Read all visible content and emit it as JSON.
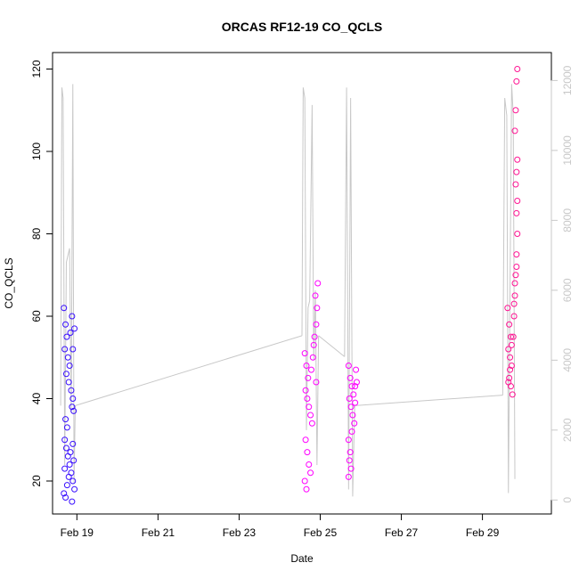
{
  "chart_data": {
    "type": "scatter",
    "title": "ORCAS RF12-19 CO_QCLS",
    "xlabel": "Date",
    "ylabel": "CO_QCLS",
    "x_ticks": [
      "Feb 19",
      "Feb 21",
      "Feb 23",
      "Feb 25",
      "Feb 27",
      "Feb 29"
    ],
    "x_tick_days": [
      19,
      21,
      23,
      25,
      27,
      29
    ],
    "xlim_days": [
      18.4,
      30.7
    ],
    "ylim": [
      12,
      124
    ],
    "y_ticks": [
      20,
      40,
      60,
      80,
      100,
      120
    ],
    "y2_ticks": [
      0,
      2000,
      4000,
      6000,
      8000,
      10000,
      12000
    ],
    "y2lim": [
      -400,
      12800
    ],
    "secondary_axis_color": "#c8c8c8",
    "altitude_line_color": "#c8c8c8",
    "series": [
      {
        "color": "#3a10ff",
        "x_range_days": [
          18.65,
          18.95
        ],
        "points": [
          [
            18.68,
            62
          ],
          [
            18.72,
            58
          ],
          [
            18.75,
            55
          ],
          [
            18.7,
            52
          ],
          [
            18.78,
            50
          ],
          [
            18.82,
            48
          ],
          [
            18.74,
            46
          ],
          [
            18.8,
            44
          ],
          [
            18.86,
            42
          ],
          [
            18.9,
            40
          ],
          [
            18.88,
            38
          ],
          [
            18.92,
            37
          ],
          [
            18.72,
            35
          ],
          [
            18.76,
            33
          ],
          [
            18.84,
            56
          ],
          [
            18.88,
            60
          ],
          [
            18.94,
            57
          ],
          [
            18.9,
            52
          ],
          [
            18.7,
            30
          ],
          [
            18.74,
            28
          ],
          [
            18.78,
            26
          ],
          [
            18.82,
            24
          ],
          [
            18.86,
            22
          ],
          [
            18.9,
            20
          ],
          [
            18.94,
            18
          ],
          [
            18.68,
            17
          ],
          [
            18.72,
            16
          ],
          [
            18.88,
            15
          ],
          [
            18.92,
            25
          ],
          [
            18.8,
            21
          ],
          [
            18.76,
            19
          ],
          [
            18.84,
            27
          ],
          [
            18.7,
            23
          ],
          [
            18.9,
            29
          ]
        ]
      },
      {
        "color": "#ff00ff",
        "x_range_days": [
          24.6,
          25.9
        ],
        "points": [
          [
            24.62,
            51
          ],
          [
            24.66,
            48
          ],
          [
            24.7,
            45
          ],
          [
            24.64,
            42
          ],
          [
            24.68,
            40
          ],
          [
            24.72,
            38
          ],
          [
            24.76,
            36
          ],
          [
            24.8,
            34
          ],
          [
            24.64,
            30
          ],
          [
            24.68,
            27
          ],
          [
            24.72,
            24
          ],
          [
            24.76,
            22
          ],
          [
            24.62,
            20
          ],
          [
            24.66,
            18
          ],
          [
            24.82,
            50
          ],
          [
            24.86,
            55
          ],
          [
            24.9,
            58
          ],
          [
            24.92,
            62
          ],
          [
            24.88,
            65
          ],
          [
            24.94,
            68
          ],
          [
            24.84,
            53
          ],
          [
            24.78,
            47
          ],
          [
            24.9,
            44
          ],
          [
            25.7,
            48
          ],
          [
            25.74,
            45
          ],
          [
            25.78,
            43
          ],
          [
            25.72,
            40
          ],
          [
            25.76,
            38
          ],
          [
            25.8,
            36
          ],
          [
            25.84,
            34
          ],
          [
            25.7,
            30
          ],
          [
            25.74,
            27
          ],
          [
            25.72,
            25
          ],
          [
            25.76,
            23
          ],
          [
            25.7,
            21
          ],
          [
            25.88,
            47
          ],
          [
            25.86,
            43
          ],
          [
            25.82,
            41
          ],
          [
            25.9,
            44
          ],
          [
            25.78,
            32
          ],
          [
            25.86,
            39
          ]
        ]
      },
      {
        "color": "#ff1493",
        "x_range_days": [
          29.6,
          29.9
        ],
        "points": [
          [
            29.62,
            62
          ],
          [
            29.66,
            58
          ],
          [
            29.7,
            55
          ],
          [
            29.64,
            52
          ],
          [
            29.68,
            50
          ],
          [
            29.72,
            48
          ],
          [
            29.66,
            45
          ],
          [
            29.7,
            43
          ],
          [
            29.74,
            41
          ],
          [
            29.78,
            60
          ],
          [
            29.8,
            65
          ],
          [
            29.82,
            70
          ],
          [
            29.84,
            75
          ],
          [
            29.86,
            80
          ],
          [
            29.84,
            85
          ],
          [
            29.86,
            88
          ],
          [
            29.82,
            92
          ],
          [
            29.84,
            95
          ],
          [
            29.86,
            98
          ],
          [
            29.8,
            105
          ],
          [
            29.82,
            110
          ],
          [
            29.84,
            117
          ],
          [
            29.86,
            120
          ],
          [
            29.76,
            55
          ],
          [
            29.72,
            53
          ],
          [
            29.68,
            47
          ],
          [
            29.64,
            44
          ],
          [
            29.8,
            68
          ],
          [
            29.84,
            72
          ],
          [
            29.78,
            63
          ]
        ]
      }
    ],
    "altitude_track": [
      [
        18.6,
        2700
      ],
      [
        18.63,
        11800
      ],
      [
        18.66,
        11500
      ],
      [
        18.7,
        1000
      ],
      [
        18.74,
        6800
      ],
      [
        18.78,
        7000
      ],
      [
        18.82,
        7200
      ],
      [
        18.86,
        2500
      ],
      [
        18.9,
        11900
      ],
      [
        18.93,
        500
      ],
      [
        18.96,
        2700
      ],
      [
        24.55,
        4700
      ],
      [
        24.58,
        11800
      ],
      [
        24.62,
        11500
      ],
      [
        24.66,
        2000
      ],
      [
        24.7,
        5500
      ],
      [
        24.74,
        5700
      ],
      [
        24.8,
        11300
      ],
      [
        24.84,
        4000
      ],
      [
        24.88,
        6000
      ],
      [
        24.92,
        1000
      ],
      [
        24.96,
        4700
      ],
      [
        25.6,
        4100
      ],
      [
        25.65,
        11800
      ],
      [
        25.7,
        300
      ],
      [
        25.75,
        11500
      ],
      [
        25.8,
        100
      ],
      [
        25.85,
        2700
      ],
      [
        29.5,
        3000
      ],
      [
        29.55,
        11500
      ],
      [
        29.6,
        11000
      ],
      [
        29.64,
        200
      ],
      [
        29.68,
        6000
      ],
      [
        29.72,
        11900
      ],
      [
        29.76,
        11000
      ],
      [
        29.8,
        600
      ]
    ],
    "altitude_connectors": [
      [
        [
          18.96,
          2700
        ],
        [
          24.55,
          4700
        ]
      ],
      [
        [
          24.96,
          4700
        ],
        [
          25.6,
          4100
        ]
      ],
      [
        [
          25.85,
          2700
        ],
        [
          29.5,
          3000
        ]
      ]
    ]
  }
}
